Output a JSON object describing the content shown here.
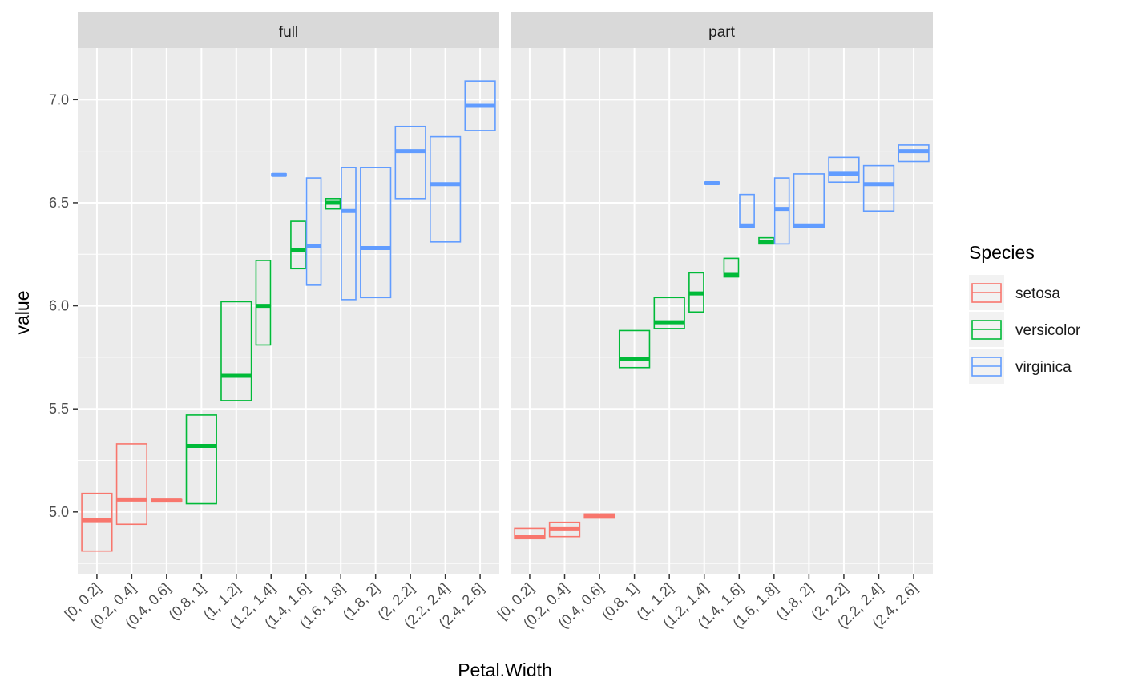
{
  "chart_data": {
    "type": "boxplot",
    "xlabel": "Petal.Width",
    "ylabel": "value",
    "ylim": [
      4.7,
      7.25
    ],
    "y_ticks": [
      5.0,
      5.5,
      6.0,
      6.5,
      7.0
    ],
    "y_tick_labels": [
      "5.0",
      "5.5",
      "6.0",
      "6.5",
      "7.0"
    ],
    "grid": true,
    "legend_position": "right",
    "categories": [
      "[0, 0.2]",
      "(0.2, 0.4]",
      "(0.4, 0.6]",
      "(0.8, 1]",
      "(1, 1.2]",
      "(1.2, 1.4]",
      "(1.4, 1.6]",
      "(1.6, 1.8]",
      "(1.8, 2]",
      "(2, 2.2]",
      "(2.2, 2.4]",
      "(2.4, 2.6]"
    ],
    "legend": {
      "title": "Species",
      "entries": [
        {
          "name": "setosa",
          "color": "#F8766D"
        },
        {
          "name": "versicolor",
          "color": "#00BA38"
        },
        {
          "name": "virginica",
          "color": "#619CFF"
        }
      ]
    },
    "panels": [
      {
        "label": "full",
        "boxes": [
          {
            "category": "[0, 0.2]",
            "species": "setosa",
            "low": 4.81,
            "mid": 4.96,
            "high": 5.09
          },
          {
            "category": "(0.2, 0.4]",
            "species": "setosa",
            "low": 4.94,
            "mid": 5.06,
            "high": 5.33
          },
          {
            "category": "(0.4, 0.6]",
            "species": "setosa",
            "low": 5.05,
            "mid": 5.055,
            "high": 5.06
          },
          {
            "category": "(0.8, 1]",
            "species": "versicolor",
            "low": 5.04,
            "mid": 5.32,
            "high": 5.47
          },
          {
            "category": "(1, 1.2]",
            "species": "versicolor",
            "low": 5.54,
            "mid": 5.66,
            "high": 6.02
          },
          {
            "category": "(1.2, 1.4]",
            "species": "versicolor",
            "low": 5.81,
            "mid": 6.0,
            "high": 6.22
          },
          {
            "category": "(1.4, 1.6]",
            "species": "versicolor",
            "low": 6.18,
            "mid": 6.27,
            "high": 6.41
          },
          {
            "category": "(1.4, 1.6]",
            "species": "virginica",
            "low": 6.1,
            "mid": 6.29,
            "high": 6.62
          },
          {
            "category": "(1.6, 1.8]",
            "species": "versicolor",
            "low": 6.47,
            "mid": 6.5,
            "high": 6.52
          },
          {
            "category": "(1.6, 1.8]",
            "species": "virginica",
            "low": 6.03,
            "mid": 6.46,
            "high": 6.67
          },
          {
            "category": "(1.8, 2]",
            "species": "virginica",
            "low": 6.04,
            "mid": 6.28,
            "high": 6.67
          },
          {
            "category": "(2, 2.2]",
            "species": "virginica",
            "low": 6.52,
            "mid": 6.75,
            "high": 6.87
          },
          {
            "category": "(2.2, 2.4]",
            "species": "virginica",
            "low": 6.31,
            "mid": 6.59,
            "high": 6.82
          },
          {
            "category": "(2.4, 2.6]",
            "species": "virginica",
            "low": 6.85,
            "mid": 6.97,
            "high": 7.09
          },
          {
            "category": "(1.2, 1.4]",
            "species": "virginica",
            "low": 6.63,
            "mid": 6.635,
            "high": 6.64
          }
        ]
      },
      {
        "label": "part",
        "boxes": [
          {
            "category": "[0, 0.2]",
            "species": "setosa",
            "low": 4.87,
            "mid": 4.88,
            "high": 4.92
          },
          {
            "category": "(0.2, 0.4]",
            "species": "setosa",
            "low": 4.88,
            "mid": 4.92,
            "high": 4.95
          },
          {
            "category": "(0.4, 0.6]",
            "species": "setosa",
            "low": 4.97,
            "mid": 4.98,
            "high": 4.99
          },
          {
            "category": "(0.8, 1]",
            "species": "versicolor",
            "low": 5.7,
            "mid": 5.74,
            "high": 5.88
          },
          {
            "category": "(1, 1.2]",
            "species": "versicolor",
            "low": 5.89,
            "mid": 5.92,
            "high": 6.04
          },
          {
            "category": "(1.2, 1.4]",
            "species": "versicolor",
            "low": 5.97,
            "mid": 6.06,
            "high": 6.16
          },
          {
            "category": "(1.4, 1.6]",
            "species": "versicolor",
            "low": 6.14,
            "mid": 6.15,
            "high": 6.23
          },
          {
            "category": "(1.6, 1.8]",
            "species": "versicolor",
            "low": 6.3,
            "mid": 6.31,
            "high": 6.33
          },
          {
            "category": "(1.2, 1.4]",
            "species": "virginica",
            "low": 6.59,
            "mid": 6.595,
            "high": 6.6
          },
          {
            "category": "(1.4, 1.6]",
            "species": "virginica",
            "low": 6.38,
            "mid": 6.39,
            "high": 6.54
          },
          {
            "category": "(1.6, 1.8]",
            "species": "virginica",
            "low": 6.3,
            "mid": 6.47,
            "high": 6.62
          },
          {
            "category": "(1.8, 2]",
            "species": "virginica",
            "low": 6.38,
            "mid": 6.39,
            "high": 6.64
          },
          {
            "category": "(2, 2.2]",
            "species": "virginica",
            "low": 6.6,
            "mid": 6.64,
            "high": 6.72
          },
          {
            "category": "(2.2, 2.4]",
            "species": "virginica",
            "low": 6.46,
            "mid": 6.59,
            "high": 6.68
          },
          {
            "category": "(2.4, 2.6]",
            "species": "virginica",
            "low": 6.7,
            "mid": 6.75,
            "high": 6.78
          }
        ]
      }
    ]
  }
}
